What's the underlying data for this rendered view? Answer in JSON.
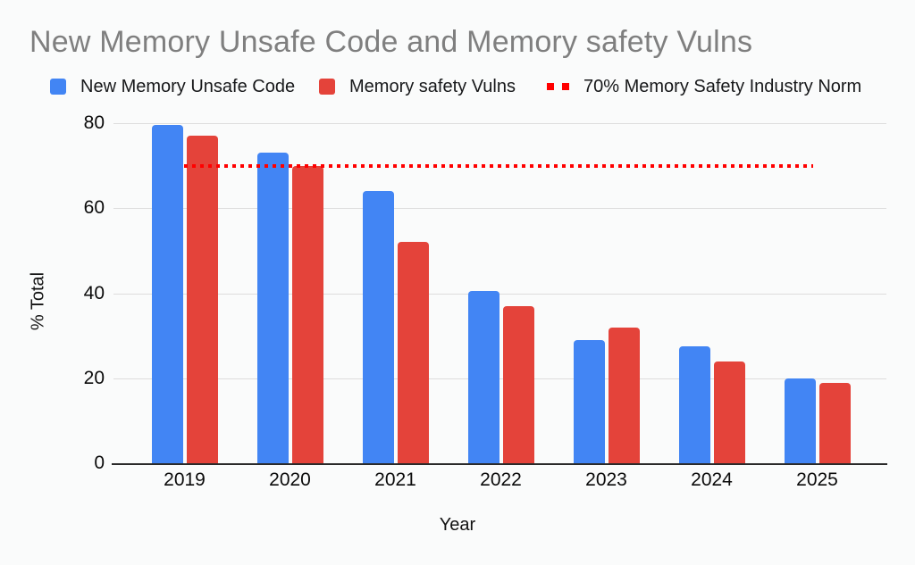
{
  "title": "New Memory Unsafe Code and Memory safety Vulns",
  "legend": [
    {
      "label": "New Memory Unsafe Code",
      "color": "#4285F4",
      "shape": "square"
    },
    {
      "label": "Memory safety Vulns",
      "color": "#E4433A",
      "shape": "square"
    },
    {
      "label": "70% Memory Safety Industry Norm",
      "color": "#FF0000",
      "shape": "dotted-line"
    }
  ],
  "chart_data": {
    "type": "bar",
    "title": "New Memory Unsafe Code and Memory safety Vulns",
    "categories": [
      "2019",
      "2020",
      "2021",
      "2022",
      "2023",
      "2024",
      "2025"
    ],
    "series": [
      {
        "name": "New Memory Unsafe Code",
        "color": "#4285F4",
        "values": [
          79.5,
          73,
          64,
          40.5,
          29,
          27.5,
          20
        ]
      },
      {
        "name": "Memory safety Vulns",
        "color": "#E4433A",
        "values": [
          77,
          70,
          52,
          37,
          32,
          24,
          19
        ]
      }
    ],
    "reference_line": {
      "label": "70% Memory Safety Industry Norm",
      "value": 70,
      "color": "#FF0000",
      "style": "dotted"
    },
    "xlabel": "Year",
    "ylabel": "% Total",
    "ylim": [
      0,
      80
    ],
    "yticks": [
      0,
      20,
      40,
      60,
      80
    ],
    "grid": true,
    "legend_position": "top",
    "grid_color": "#dddddd",
    "axis_color": "#2a2a2a",
    "title_color": "#7f7f7f",
    "background_color": "#fafbfb"
  }
}
